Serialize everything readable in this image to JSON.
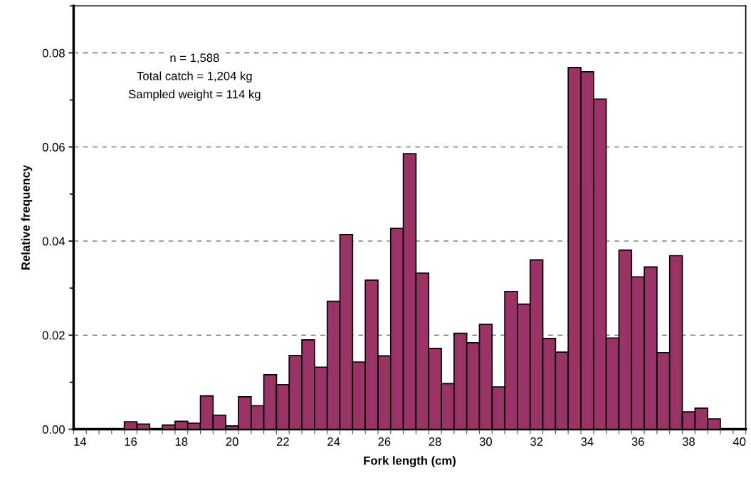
{
  "chart_data": {
    "type": "histogram",
    "xlabel": "Fork length (cm)",
    "ylabel": "Relative frequency",
    "color": "#993366",
    "bins": [
      13.75,
      14.25,
      14.75,
      15.25,
      15.75,
      16.25,
      16.75,
      17.25,
      17.75,
      18.25,
      18.75,
      19.25,
      19.75,
      20.25,
      20.75,
      21.25,
      21.75,
      22.25,
      22.75,
      23.25,
      23.75,
      24.25,
      24.75,
      25.25,
      25.75,
      26.25,
      26.75,
      27.25,
      27.75,
      28.25,
      28.75,
      29.25,
      29.75,
      30.25,
      30.75,
      31.25,
      31.75,
      32.25,
      32.75,
      33.25,
      33.75,
      34.25,
      34.75,
      35.25,
      35.75,
      36.25,
      36.75,
      37.25,
      37.75,
      38.25,
      38.75,
      39.25,
      39.75,
      40.25
    ],
    "values": [
      0,
      0,
      0,
      0,
      0.0016,
      0.0011,
      0,
      0.0009,
      0.0017,
      0.0013,
      0.0071,
      0.003,
      0.0007,
      0.0069,
      0.005,
      0.0116,
      0.0095,
      0.0157,
      0.019,
      0.0132,
      0.0272,
      0.0414,
      0.0143,
      0.0317,
      0.0156,
      0.0427,
      0.0586,
      0.0332,
      0.0172,
      0.0097,
      0.0204,
      0.0184,
      0.0223,
      0.009,
      0.0293,
      0.0266,
      0.036,
      0.0193,
      0.0164,
      0.0769,
      0.076,
      0.0702,
      0.0194,
      0.0381,
      0.0324,
      0.0345,
      0.0163,
      0.0369,
      0.0037,
      0.0045,
      0.0022,
      0,
      0
    ],
    "xlim": [
      13.75,
      40.25
    ],
    "xticks": [
      14,
      16,
      18,
      20,
      22,
      24,
      26,
      28,
      30,
      32,
      34,
      36,
      38,
      40
    ],
    "ylim": [
      0,
      0.09
    ],
    "yticks": [
      {
        "value": 0,
        "label": "0.00"
      },
      {
        "value": 0.02,
        "label": "0.02"
      },
      {
        "value": 0.04,
        "label": "0.04"
      },
      {
        "value": 0.06,
        "label": "0.06"
      },
      {
        "value": 0.08,
        "label": "0.08"
      }
    ],
    "grid": "y",
    "legend": false,
    "annotations": [
      "n = 1,588",
      "Total catch = 1,204 kg",
      "Sampled weight = 114 kg"
    ]
  }
}
